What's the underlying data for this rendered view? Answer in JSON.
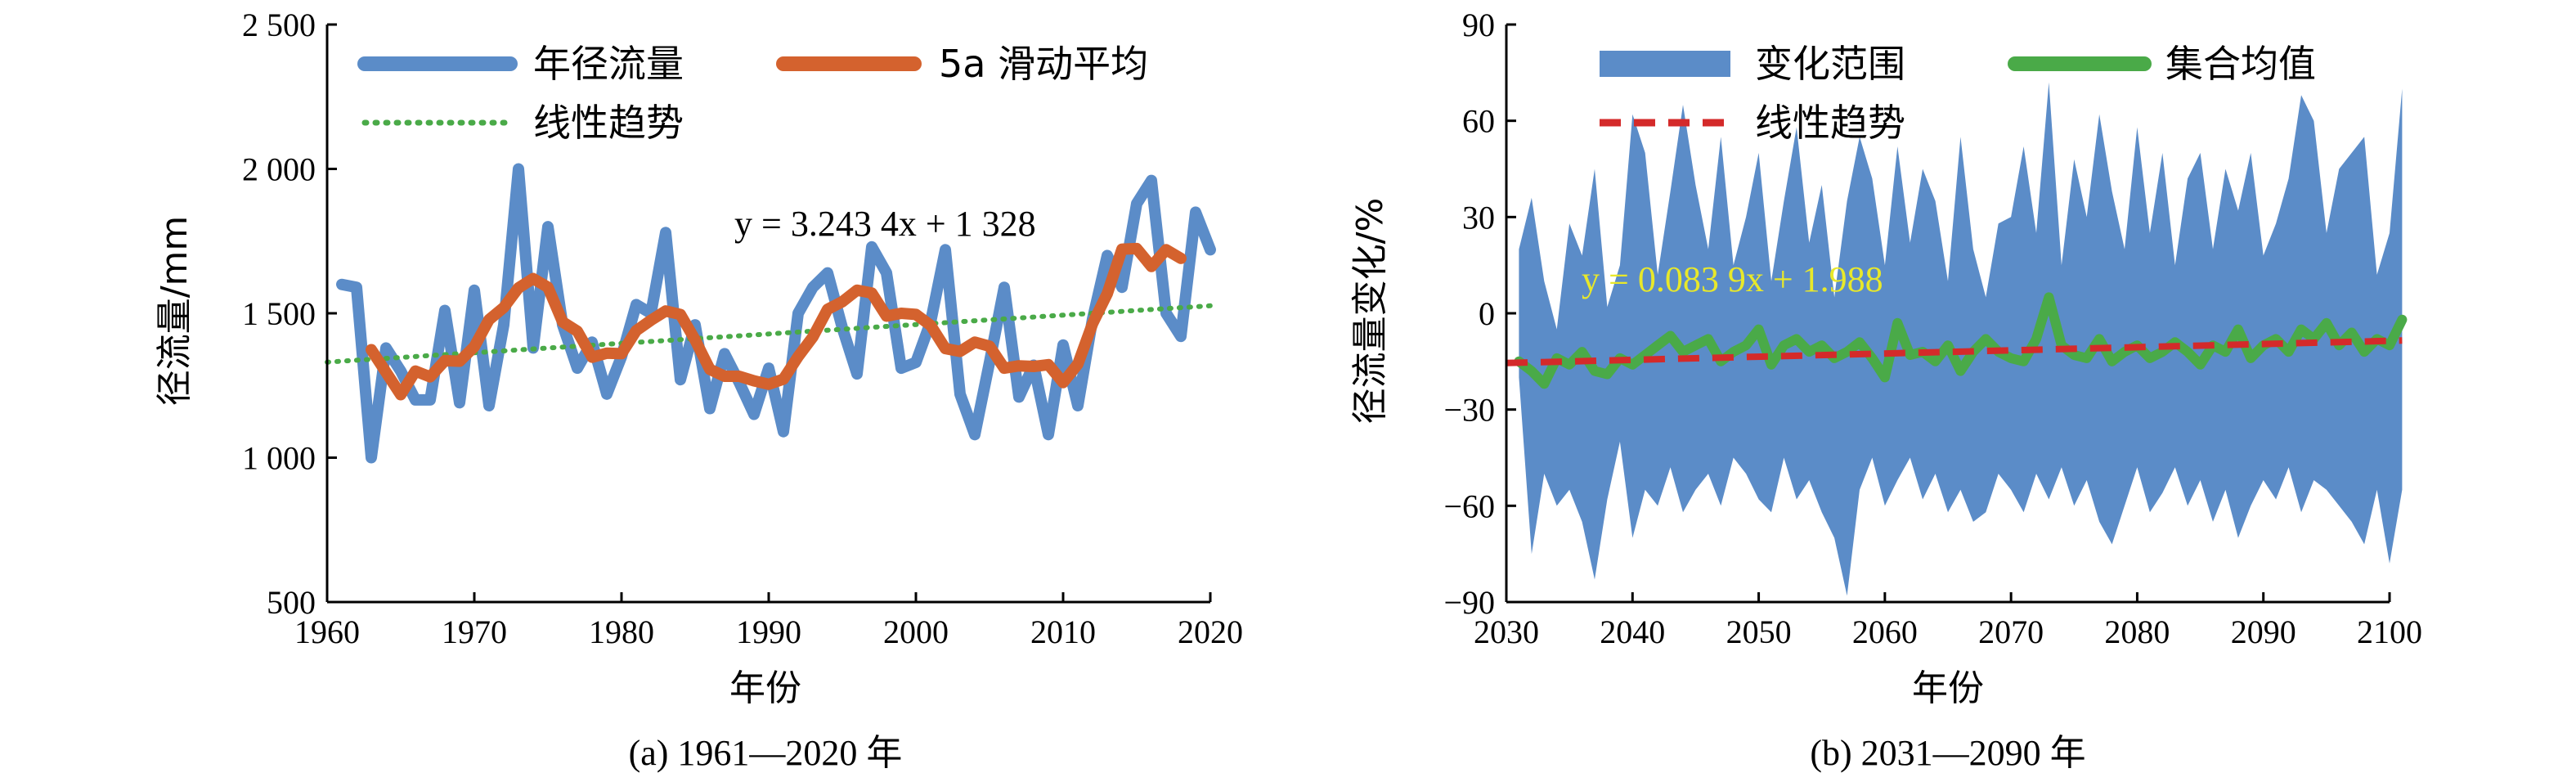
{
  "chart_data": [
    {
      "type": "line",
      "caption": "(a) 1961—2020 年",
      "xlabel": "年份",
      "ylabel": "径流量/mm",
      "xlim": [
        1960,
        2020
      ],
      "ylim": [
        500,
        2500
      ],
      "x_ticks": [
        1960,
        1970,
        1980,
        1990,
        2000,
        2010,
        2020
      ],
      "y_ticks": [
        500,
        1000,
        1500,
        2000,
        2500
      ],
      "y_tick_labels": [
        "500",
        "1 000",
        "1 500",
        "2 000",
        "2 500"
      ],
      "legend": {
        "placement": "top-left"
      },
      "annotation": "y = 3.243 4x + 1 328",
      "colors": {
        "annual": "#5b8cc8",
        "moving": "#d4622e",
        "trend": "#4aaa48",
        "annotation": "#000000"
      },
      "x": [
        1961,
        1962,
        1963,
        1964,
        1965,
        1966,
        1967,
        1968,
        1969,
        1970,
        1971,
        1972,
        1973,
        1974,
        1975,
        1976,
        1977,
        1978,
        1979,
        1980,
        1981,
        1982,
        1983,
        1984,
        1985,
        1986,
        1987,
        1988,
        1989,
        1990,
        1991,
        1992,
        1993,
        1994,
        1995,
        1996,
        1997,
        1998,
        1999,
        2000,
        2001,
        2002,
        2003,
        2004,
        2005,
        2006,
        2007,
        2008,
        2009,
        2010,
        2011,
        2012,
        2013,
        2014,
        2015,
        2016,
        2017,
        2018,
        2019,
        2020
      ],
      "series": [
        {
          "name": "年径流量",
          "style": "solid-thick",
          "values": [
            1600,
            1590,
            1000,
            1380,
            1300,
            1200,
            1200,
            1510,
            1190,
            1580,
            1180,
            1460,
            2000,
            1380,
            1800,
            1460,
            1310,
            1400,
            1220,
            1350,
            1530,
            1500,
            1780,
            1270,
            1460,
            1170,
            1360,
            1260,
            1150,
            1310,
            1090,
            1500,
            1590,
            1640,
            1450,
            1290,
            1730,
            1640,
            1310,
            1330,
            1470,
            1720,
            1220,
            1080,
            1330,
            1590,
            1210,
            1320,
            1080,
            1390,
            1180,
            1480,
            1700,
            1590,
            1880,
            1960,
            1500,
            1420,
            1850,
            1720
          ]
        },
        {
          "name": "5a 滑动平均",
          "style": "solid-thick",
          "x": [
            1963,
            1964,
            1965,
            1966,
            1967,
            1968,
            1969,
            1970,
            1971,
            1972,
            1973,
            1974,
            1975,
            1976,
            1977,
            1978,
            1979,
            1980,
            1981,
            1982,
            1983,
            1984,
            1985,
            1986,
            1987,
            1988,
            1989,
            1990,
            1991,
            1992,
            1993,
            1994,
            1995,
            1996,
            1997,
            1998,
            1999,
            2000,
            2001,
            2002,
            2003,
            2004,
            2005,
            2006,
            2007,
            2008,
            2009,
            2010,
            2011,
            2012,
            2013,
            2014,
            2015,
            2016,
            2017,
            2018
          ],
          "values": [
            1374,
            1296,
            1218,
            1300,
            1280,
            1336,
            1334,
            1384,
            1478,
            1520,
            1588,
            1620,
            1590,
            1470,
            1438,
            1348,
            1362,
            1360,
            1440,
            1476,
            1508,
            1496,
            1408,
            1306,
            1282,
            1282,
            1266,
            1254,
            1272,
            1350,
            1418,
            1514,
            1540,
            1580,
            1570,
            1490,
            1500,
            1496,
            1458,
            1378,
            1368,
            1400,
            1386,
            1310,
            1318,
            1316,
            1322,
            1260,
            1324,
            1464,
            1568,
            1722,
            1724,
            1662,
            1720,
            1690
          ]
        },
        {
          "name": "线性趋势",
          "style": "dotted",
          "x": [
            1960,
            2020
          ],
          "values": [
            1331,
            1526
          ]
        }
      ]
    },
    {
      "type": "area",
      "caption": "(b) 2031—2090 年",
      "xlabel": "年份",
      "ylabel": "径流量变化/%",
      "xlim": [
        2030,
        2100
      ],
      "ylim": [
        -90,
        90
      ],
      "x_ticks": [
        2030,
        2040,
        2050,
        2060,
        2070,
        2080,
        2090,
        2100
      ],
      "y_ticks": [
        -90,
        -60,
        -30,
        0,
        30,
        60,
        90
      ],
      "y_tick_labels": [
        "−90",
        "−60",
        "−30",
        "0",
        "30",
        "60",
        "90"
      ],
      "legend": {
        "placement": "top"
      },
      "annotation": "y = 0.083 9x + 1.988",
      "colors": {
        "range": "#5b8cc8",
        "mean": "#4aaa48",
        "trend": "#d42a2a",
        "annotation": "#e8e82a"
      },
      "x": [
        2031,
        2032,
        2033,
        2034,
        2035,
        2036,
        2037,
        2038,
        2039,
        2040,
        2041,
        2042,
        2043,
        2044,
        2045,
        2046,
        2047,
        2048,
        2049,
        2050,
        2051,
        2052,
        2053,
        2054,
        2055,
        2056,
        2057,
        2058,
        2059,
        2060,
        2061,
        2062,
        2063,
        2064,
        2065,
        2066,
        2067,
        2068,
        2069,
        2070,
        2071,
        2072,
        2073,
        2074,
        2075,
        2076,
        2077,
        2078,
        2079,
        2080,
        2081,
        2082,
        2083,
        2084,
        2085,
        2086,
        2087,
        2088,
        2089,
        2090,
        2091,
        2092,
        2093,
        2094,
        2095,
        2096,
        2097,
        2098,
        2099,
        2100,
        2101
      ],
      "series": [
        {
          "name": "变化范围",
          "style": "band",
          "upper": [
            20,
            36,
            10,
            -5,
            28,
            18,
            45,
            2,
            15,
            62,
            50,
            12,
            38,
            65,
            40,
            20,
            55,
            15,
            30,
            50,
            10,
            35,
            58,
            22,
            40,
            5,
            35,
            55,
            42,
            15,
            52,
            22,
            45,
            35,
            10,
            55,
            20,
            5,
            28,
            30,
            52,
            25,
            72,
            15,
            48,
            30,
            62,
            38,
            20,
            58,
            25,
            50,
            15,
            42,
            50,
            20,
            45,
            32,
            50,
            18,
            28,
            42,
            68,
            60,
            25,
            45,
            50,
            55,
            12,
            25,
            70
          ],
          "lower": [
            -20,
            -75,
            -50,
            -60,
            -55,
            -65,
            -83,
            -58,
            -40,
            -70,
            -55,
            -60,
            -48,
            -62,
            -55,
            -50,
            -60,
            -45,
            -50,
            -58,
            -62,
            -45,
            -58,
            -52,
            -62,
            -70,
            -88,
            -55,
            -45,
            -60,
            -52,
            -45,
            -58,
            -50,
            -62,
            -55,
            -65,
            -62,
            -50,
            -55,
            -62,
            -50,
            -58,
            -48,
            -60,
            -52,
            -65,
            -72,
            -60,
            -48,
            -62,
            -56,
            -48,
            -60,
            -52,
            -65,
            -55,
            -70,
            -60,
            -52,
            -58,
            -48,
            -62,
            -52,
            -55,
            -60,
            -65,
            -72,
            -55,
            -78,
            -55
          ]
        },
        {
          "name": "集合均值",
          "style": "solid-thick",
          "values": [
            -15,
            -18,
            -22,
            -14,
            -16,
            -12,
            -18,
            -19,
            -14,
            -16,
            -13,
            -10,
            -7,
            -12,
            -10,
            -8,
            -15,
            -12,
            -10,
            -5,
            -16,
            -10,
            -8,
            -12,
            -10,
            -14,
            -12,
            -9,
            -14,
            -20,
            -3,
            -13,
            -12,
            -15,
            -10,
            -18,
            -12,
            -8,
            -12,
            -14,
            -15,
            -8,
            5,
            -10,
            -13,
            -14,
            -8,
            -15,
            -12,
            -10,
            -14,
            -12,
            -9,
            -12,
            -16,
            -10,
            -12,
            -5,
            -14,
            -10,
            -8,
            -12,
            -5,
            -8,
            -3,
            -10,
            -6,
            -12,
            -8,
            -10,
            -2
          ]
        },
        {
          "name": "线性趋势",
          "style": "dashed",
          "x": [
            2030,
            2101
          ],
          "values": [
            -15.5,
            -8.5
          ]
        }
      ]
    }
  ]
}
